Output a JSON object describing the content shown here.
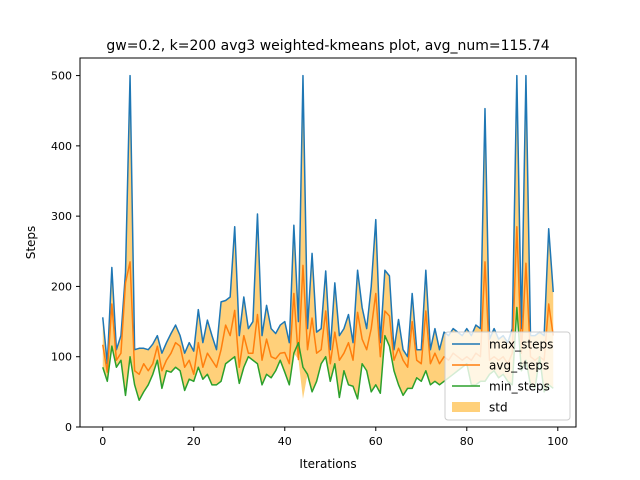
{
  "chart_data": {
    "type": "line",
    "title": "gw=0.2, k=200 avg3 weighted-kmeans plot, avg_num=115.74",
    "xlabel": "Iterations",
    "ylabel": "Steps",
    "xlim": [
      -5,
      104
    ],
    "ylim": [
      0,
      525
    ],
    "x_ticks": [
      0,
      20,
      40,
      60,
      80,
      100
    ],
    "y_ticks": [
      0,
      100,
      200,
      300,
      400,
      500
    ],
    "grid": false,
    "legend_position": "lower-right",
    "x": [
      0,
      1,
      2,
      3,
      4,
      5,
      6,
      7,
      8,
      9,
      10,
      11,
      12,
      13,
      14,
      15,
      16,
      17,
      18,
      19,
      20,
      21,
      22,
      23,
      24,
      25,
      26,
      27,
      28,
      29,
      30,
      31,
      32,
      33,
      34,
      35,
      36,
      37,
      38,
      39,
      40,
      41,
      42,
      43,
      44,
      45,
      46,
      47,
      48,
      49,
      50,
      51,
      52,
      53,
      54,
      55,
      56,
      57,
      58,
      59,
      60,
      61,
      62,
      63,
      64,
      65,
      66,
      67,
      68,
      69,
      70,
      71,
      72,
      73,
      74,
      75,
      76,
      77,
      78,
      79,
      80,
      81,
      82,
      83,
      84,
      85,
      86,
      87,
      88,
      89,
      90,
      91,
      92,
      93,
      94,
      95,
      96,
      97,
      98,
      99
    ],
    "series": [
      {
        "name": "max_steps",
        "color": "#1f77b4",
        "values": [
          156,
          90,
          227,
          110,
          130,
          220,
          500,
          110,
          112,
          112,
          110,
          118,
          130,
          105,
          120,
          133,
          145,
          130,
          105,
          120,
          108,
          167,
          120,
          152,
          130,
          110,
          178,
          180,
          185,
          285,
          130,
          185,
          140,
          150,
          303,
          130,
          173,
          140,
          133,
          145,
          150,
          120,
          287,
          150,
          500,
          140,
          247,
          135,
          140,
          222,
          110,
          205,
          130,
          140,
          160,
          120,
          223,
          170,
          140,
          200,
          295,
          120,
          223,
          215,
          110,
          153,
          110,
          100,
          190,
          110,
          110,
          223,
          110,
          140,
          110,
          135,
          130,
          140,
          135,
          130,
          140,
          130,
          145,
          140,
          453,
          125,
          140,
          125,
          130,
          120,
          140,
          500,
          140,
          500,
          130,
          130,
          135,
          130,
          282,
          192
        ]
      },
      {
        "name": "avg_steps",
        "color": "#ff7f0e",
        "values": [
          117,
          78,
          175,
          95,
          105,
          205,
          235,
          80,
          75,
          90,
          80,
          90,
          115,
          80,
          95,
          105,
          120,
          115,
          85,
          95,
          75,
          120,
          85,
          105,
          95,
          85,
          110,
          145,
          130,
          166,
          85,
          130,
          105,
          105,
          160,
          95,
          125,
          100,
          97,
          105,
          106,
          90,
          190,
          96,
          230,
          110,
          155,
          105,
          110,
          165,
          90,
          135,
          95,
          105,
          120,
          95,
          163,
          125,
          110,
          140,
          190,
          100,
          165,
          158,
          95,
          112,
          95,
          85,
          150,
          95,
          90,
          165,
          90,
          105,
          90,
          100,
          95,
          105,
          100,
          95,
          100,
          95,
          105,
          100,
          235,
          95,
          100,
          95,
          100,
          90,
          105,
          285,
          105,
          233,
          100,
          95,
          100,
          95,
          175,
          130
        ]
      },
      {
        "name": "min_steps",
        "color": "#2ca02c",
        "values": [
          85,
          65,
          115,
          85,
          95,
          45,
          100,
          60,
          38,
          50,
          60,
          75,
          95,
          55,
          80,
          78,
          85,
          80,
          52,
          68,
          65,
          85,
          68,
          75,
          60,
          60,
          65,
          90,
          95,
          100,
          62,
          85,
          100,
          95,
          90,
          60,
          75,
          70,
          80,
          95,
          78,
          60,
          105,
          120,
          85,
          75,
          50,
          65,
          90,
          100,
          65,
          90,
          42,
          80,
          60,
          58,
          40,
          90,
          80,
          50,
          60,
          48,
          130,
          115,
          80,
          60,
          45,
          55,
          55,
          70,
          65,
          80,
          60,
          65,
          60,
          65,
          70,
          75,
          80,
          85,
          90,
          60,
          60,
          65,
          65,
          75,
          80,
          70,
          75,
          65,
          60,
          170,
          80,
          95,
          60,
          55,
          100,
          50,
          60,
          55
        ]
      }
    ],
    "band": {
      "name": "std",
      "color": "#ffb733",
      "opacity": 0.65,
      "lower": [
        85,
        65,
        115,
        84,
        95,
        45,
        100,
        60,
        38,
        50,
        60,
        75,
        95,
        55,
        80,
        78,
        85,
        80,
        52,
        68,
        65,
        85,
        68,
        75,
        60,
        60,
        65,
        90,
        95,
        100,
        62,
        85,
        100,
        95,
        90,
        60,
        75,
        70,
        80,
        95,
        78,
        60,
        105,
        96,
        40,
        75,
        50,
        65,
        90,
        100,
        65,
        90,
        42,
        80,
        60,
        58,
        40,
        90,
        80,
        50,
        60,
        48,
        130,
        115,
        80,
        60,
        45,
        55,
        55,
        70,
        65,
        80,
        60,
        65,
        60,
        65,
        70,
        75,
        80,
        85,
        90,
        60,
        60,
        65,
        65,
        75,
        80,
        70,
        75,
        65,
        60,
        170,
        80,
        95,
        60,
        55,
        100,
        50,
        60,
        55
      ],
      "upper": [
        156,
        90,
        227,
        110,
        130,
        220,
        500,
        110,
        112,
        112,
        110,
        118,
        130,
        105,
        120,
        133,
        145,
        130,
        105,
        120,
        108,
        167,
        120,
        152,
        130,
        110,
        178,
        180,
        185,
        285,
        130,
        185,
        140,
        150,
        303,
        130,
        173,
        140,
        133,
        145,
        150,
        120,
        287,
        150,
        500,
        140,
        247,
        135,
        140,
        222,
        110,
        205,
        130,
        140,
        160,
        120,
        223,
        170,
        140,
        200,
        295,
        120,
        223,
        215,
        110,
        153,
        110,
        100,
        190,
        110,
        110,
        223,
        110,
        140,
        110,
        135,
        130,
        140,
        135,
        130,
        140,
        130,
        145,
        140,
        453,
        125,
        140,
        125,
        130,
        120,
        140,
        500,
        140,
        500,
        130,
        130,
        135,
        130,
        282,
        192
      ]
    }
  }
}
